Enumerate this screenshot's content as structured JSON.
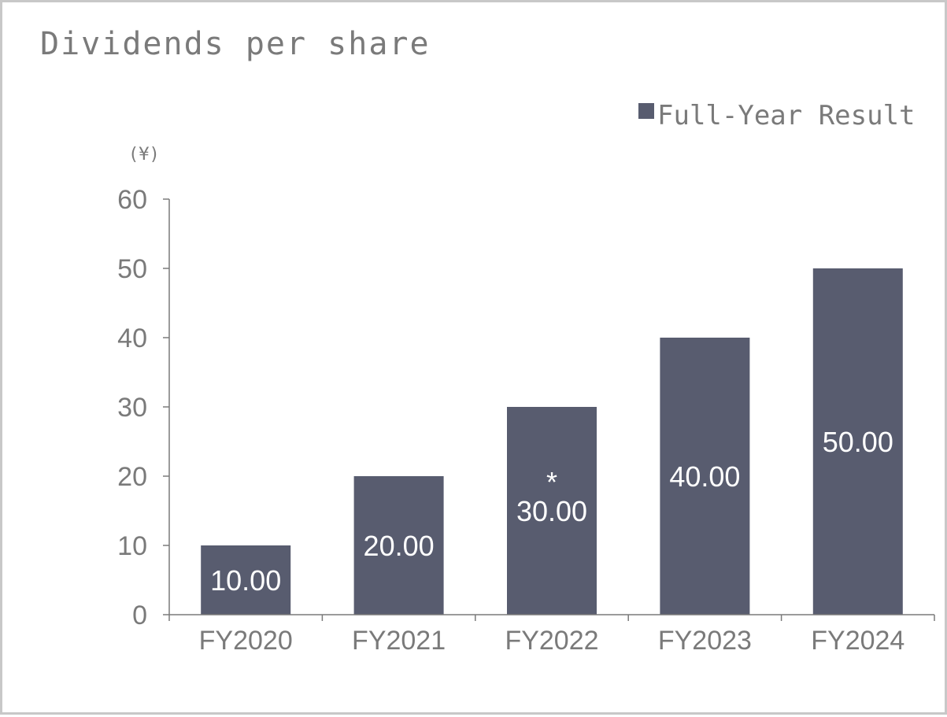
{
  "chart_data": {
    "type": "bar",
    "title": "Dividends per share",
    "unit_label": "(¥)",
    "categories": [
      "FY2020",
      "FY2021",
      "FY2022",
      "FY2023",
      "FY2024"
    ],
    "series": [
      {
        "name": "Full-Year Result",
        "values": [
          10,
          20,
          30,
          40,
          50
        ],
        "data_labels": [
          "10.00",
          "20.00",
          "30.00",
          "40.00",
          "50.00"
        ],
        "color": "#585c6f"
      }
    ],
    "annotations": [
      {
        "category": "FY2022",
        "text": "*"
      }
    ],
    "yticks": [
      "0",
      "10",
      "20",
      "30",
      "40",
      "50",
      "60"
    ],
    "ylim": [
      0,
      60
    ],
    "legend_position": "top-right",
    "grid": false,
    "colors": {
      "bar": "#585c6f",
      "axis": "#7a7a7a",
      "text": "#7a7a7a",
      "label_text": "#ffffff",
      "frame": "#c8c8c8"
    }
  }
}
